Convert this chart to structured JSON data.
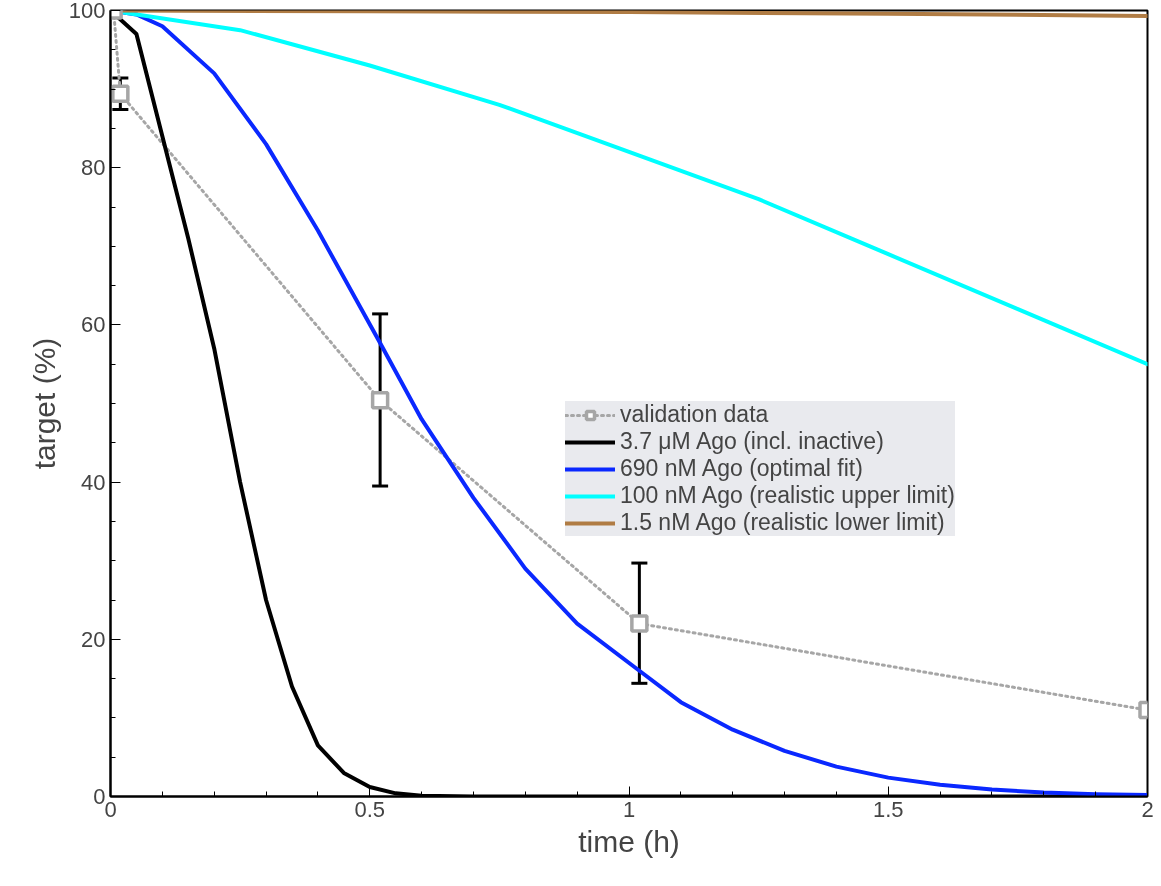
{
  "chart_data": {
    "type": "line",
    "xlabel": "time (h)",
    "ylabel": "target (%)",
    "xlim": [
      0,
      2
    ],
    "ylim": [
      0,
      100
    ],
    "xticks": [
      0,
      0.5,
      1,
      1.5,
      2
    ],
    "yticks": [
      0,
      20,
      40,
      60,
      80,
      100
    ],
    "grid": false,
    "legend": "right",
    "line_style": "solid",
    "series": [
      {
        "name": "validation data",
        "color": "#a6a6a6",
        "marker": "square",
        "line_style": "dotted",
        "x": [
          0.006,
          0.019,
          0.52,
          1.02,
          2
        ],
        "values": [
          100,
          89.4,
          50.4,
          22.0,
          11.0
        ],
        "errors": [
          null,
          [
            87.4,
            91.4
          ],
          [
            39.5,
            61.4
          ],
          [
            14.4,
            29.7
          ],
          null
        ]
      },
      {
        "name": "3.7 μM Ago (incl. inactive)",
        "color": "#000000",
        "marker": "none",
        "x": [
          0,
          0.05,
          0.1,
          0.15,
          0.2,
          0.25,
          0.3,
          0.35,
          0.4,
          0.45,
          0.5,
          0.55,
          0.6,
          0.7,
          1,
          1.5,
          2
        ],
        "values": [
          100,
          97,
          84,
          71,
          57,
          40,
          25,
          14,
          6.5,
          3,
          1.2,
          0.4,
          0.1,
          0,
          0,
          0,
          0
        ]
      },
      {
        "name": "690 nM Ago (optimal fit)",
        "color": "#0a28ff",
        "marker": "none",
        "x": [
          0,
          0.05,
          0.1,
          0.2,
          0.3,
          0.4,
          0.52,
          0.6,
          0.7,
          0.8,
          0.9,
          1.02,
          1.1,
          1.2,
          1.3,
          1.4,
          1.5,
          1.6,
          1.7,
          1.8,
          1.9,
          2
        ],
        "values": [
          100,
          99.5,
          98,
          92,
          83,
          72,
          57.7,
          48,
          38,
          29,
          22,
          16,
          12,
          8.5,
          5.8,
          3.8,
          2.4,
          1.5,
          0.9,
          0.5,
          0.3,
          0.2
        ]
      },
      {
        "name": "100 nM Ago (realistic upper limit)",
        "color": "#00ffff",
        "marker": "none",
        "x": [
          0,
          0.25,
          0.5,
          0.75,
          1,
          1.25,
          1.5,
          1.75,
          2
        ],
        "values": [
          100,
          97.5,
          93,
          88,
          82,
          76,
          69,
          62,
          55
        ]
      },
      {
        "name": "1.5 nM Ago (realistic lower limit)",
        "color": "#b07c44",
        "marker": "none",
        "x": [
          0,
          0.5,
          1,
          1.5,
          2
        ],
        "values": [
          100,
          99.9,
          99.8,
          99.6,
          99.3
        ]
      }
    ]
  }
}
